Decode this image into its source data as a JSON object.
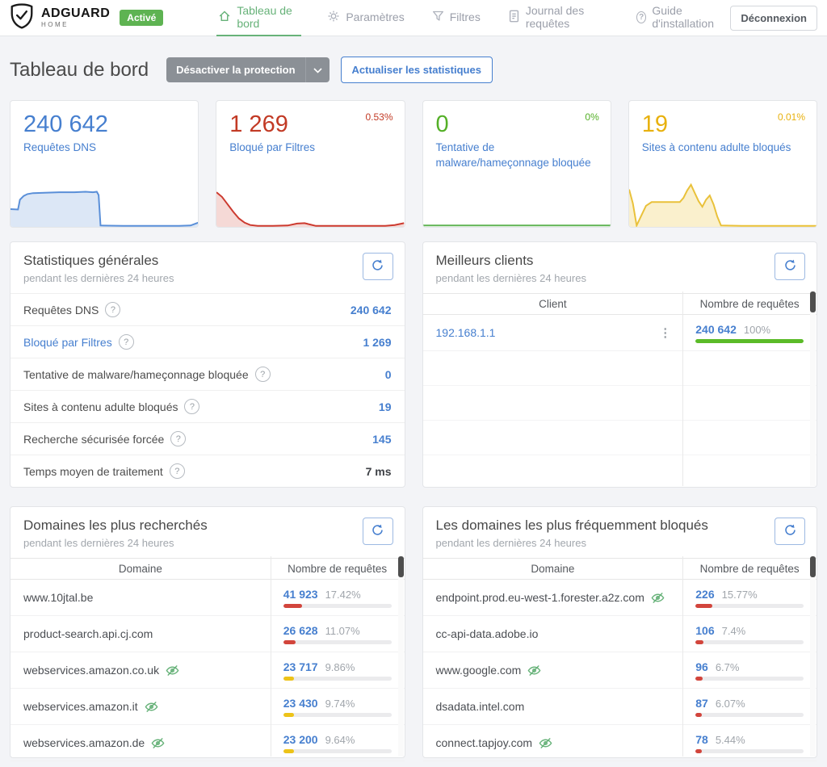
{
  "icons": {
    "help_glyph": "?",
    "kebab_glyph": "⋮"
  },
  "header": {
    "logo_title": "ADGUARD",
    "logo_subtitle": "HOME",
    "status_badge": "Activé",
    "nav": [
      {
        "label": "Tableau de bord"
      },
      {
        "label": "Paramètres"
      },
      {
        "label": "Filtres"
      },
      {
        "label": "Journal des requêtes"
      },
      {
        "label": "Guide d'installation"
      }
    ],
    "logout_label": "Déconnexion"
  },
  "page": {
    "title": "Tableau de bord",
    "disable_protection_label": "Désactiver la protection",
    "refresh_stats_label": "Actualiser les statistiques"
  },
  "stat_cards": [
    {
      "value": "240 642",
      "label": "Requêtes DNS",
      "percent": "",
      "color": "#467fcf",
      "spark_stroke": "#5a8fd8",
      "spark_fill": "#dce7f6",
      "points": [
        [
          0,
          62
        ],
        [
          4,
          63
        ],
        [
          5,
          42
        ],
        [
          7,
          34
        ],
        [
          9,
          30
        ],
        [
          12,
          28
        ],
        [
          18,
          27
        ],
        [
          26,
          26
        ],
        [
          34,
          26
        ],
        [
          40,
          25
        ],
        [
          44,
          26
        ],
        [
          46,
          25
        ],
        [
          47,
          32
        ],
        [
          48,
          97
        ],
        [
          60,
          98
        ],
        [
          75,
          98
        ],
        [
          90,
          98
        ],
        [
          96,
          97
        ],
        [
          100,
          91
        ]
      ]
    },
    {
      "value": "1 269",
      "label": "Bloqué par Filtres",
      "percent": "0.53%",
      "color": "#c23a25",
      "spark_stroke": "#cc3a2f",
      "spark_fill": "#f5d9d6",
      "points": [
        [
          0,
          26
        ],
        [
          3,
          36
        ],
        [
          6,
          52
        ],
        [
          9,
          68
        ],
        [
          12,
          82
        ],
        [
          15,
          91
        ],
        [
          18,
          96
        ],
        [
          22,
          98
        ],
        [
          30,
          98
        ],
        [
          38,
          97
        ],
        [
          43,
          93
        ],
        [
          47,
          92
        ],
        [
          50,
          95
        ],
        [
          53,
          98
        ],
        [
          65,
          98
        ],
        [
          80,
          98
        ],
        [
          90,
          98
        ],
        [
          95,
          96
        ],
        [
          100,
          92
        ]
      ]
    },
    {
      "value": "0",
      "label": "Tentative de malware/hameçonnage bloquée",
      "percent": "0%",
      "color": "#54b027",
      "spark_stroke": "#5eb352",
      "spark_fill": "none",
      "points": [
        [
          0,
          97
        ],
        [
          100,
          97
        ]
      ]
    },
    {
      "value": "19",
      "label": "Sites à contenu adulte bloqués",
      "percent": "0.01%",
      "color": "#e8b10e",
      "spark_stroke": "#e9c13a",
      "spark_fill": "#faf0cd",
      "points": [
        [
          0,
          20
        ],
        [
          2,
          50
        ],
        [
          4,
          97
        ],
        [
          6,
          80
        ],
        [
          9,
          55
        ],
        [
          12,
          47
        ],
        [
          16,
          47
        ],
        [
          22,
          47
        ],
        [
          27,
          47
        ],
        [
          29,
          38
        ],
        [
          31,
          22
        ],
        [
          33,
          10
        ],
        [
          35,
          28
        ],
        [
          37,
          45
        ],
        [
          39,
          57
        ],
        [
          41,
          42
        ],
        [
          43,
          33
        ],
        [
          45,
          52
        ],
        [
          47,
          78
        ],
        [
          49,
          97
        ],
        [
          60,
          98
        ],
        [
          75,
          98
        ],
        [
          90,
          98
        ],
        [
          100,
          98
        ]
      ]
    }
  ],
  "general_stats": {
    "title": "Statistiques générales",
    "subtitle": "pendant les dernières 24 heures",
    "rows": [
      {
        "label": "Requêtes DNS",
        "value": "240 642"
      },
      {
        "label": "Bloqué par Filtres",
        "value": "1 269",
        "link": true
      },
      {
        "label": "Tentative de malware/hameçonnage bloquée",
        "value": "0"
      },
      {
        "label": "Sites à contenu adulte bloqués",
        "value": "19"
      },
      {
        "label": "Recherche sécurisée forcée",
        "value": "145"
      },
      {
        "label": "Temps moyen de traitement",
        "value": "7 ms",
        "dark": true
      }
    ]
  },
  "top_clients": {
    "title": "Meilleurs clients",
    "subtitle": "pendant les dernières 24 heures",
    "col_client": "Client",
    "col_count": "Nombre de requêtes",
    "rows": [
      {
        "client": "192.168.1.1",
        "count": "240 642",
        "percent": "100%",
        "bar_percent": 100,
        "bar_color": "#5bbb28"
      }
    ]
  },
  "queried_domains": {
    "title": "Domaines les plus recherchés",
    "subtitle": "pendant les dernières 24 heures",
    "col_domain": "Domaine",
    "col_count": "Nombre de requêtes",
    "rows": [
      {
        "domain": "www.10jtal.be",
        "privacy": false,
        "count": "41 923",
        "percent": "17.42%",
        "bar_percent": 17.42,
        "bar_color": "#d2453c"
      },
      {
        "domain": "product-search.api.cj.com",
        "privacy": false,
        "count": "26 628",
        "percent": "11.07%",
        "bar_percent": 11.07,
        "bar_color": "#d2453c"
      },
      {
        "domain": "webservices.amazon.co.uk",
        "privacy": true,
        "count": "23 717",
        "percent": "9.86%",
        "bar_percent": 9.86,
        "bar_color": "#edc318"
      },
      {
        "domain": "webservices.amazon.it",
        "privacy": true,
        "count": "23 430",
        "percent": "9.74%",
        "bar_percent": 9.74,
        "bar_color": "#edc318"
      },
      {
        "domain": "webservices.amazon.de",
        "privacy": true,
        "count": "23 200",
        "percent": "9.64%",
        "bar_percent": 9.64,
        "bar_color": "#edc318"
      }
    ]
  },
  "blocked_domains": {
    "title": "Les domaines les plus fréquemment bloqués",
    "subtitle": "pendant les dernières 24 heures",
    "col_domain": "Domaine",
    "col_count": "Nombre de requêtes",
    "rows": [
      {
        "domain": "endpoint.prod.eu-west-1.forester.a2z.com",
        "privacy": true,
        "count": "226",
        "percent": "15.77%",
        "bar_percent": 15.77,
        "bar_color": "#d2453c"
      },
      {
        "domain": "cc-api-data.adobe.io",
        "privacy": false,
        "count": "106",
        "percent": "7.4%",
        "bar_percent": 7.4,
        "bar_color": "#d2453c"
      },
      {
        "domain": "www.google.com",
        "privacy": true,
        "count": "96",
        "percent": "6.7%",
        "bar_percent": 6.7,
        "bar_color": "#d2453c"
      },
      {
        "domain": "dsadata.intel.com",
        "privacy": false,
        "count": "87",
        "percent": "6.07%",
        "bar_percent": 6.07,
        "bar_color": "#d2453c"
      },
      {
        "domain": "connect.tapjoy.com",
        "privacy": true,
        "count": "78",
        "percent": "5.44%",
        "bar_percent": 5.44,
        "bar_color": "#d2453c"
      }
    ]
  }
}
